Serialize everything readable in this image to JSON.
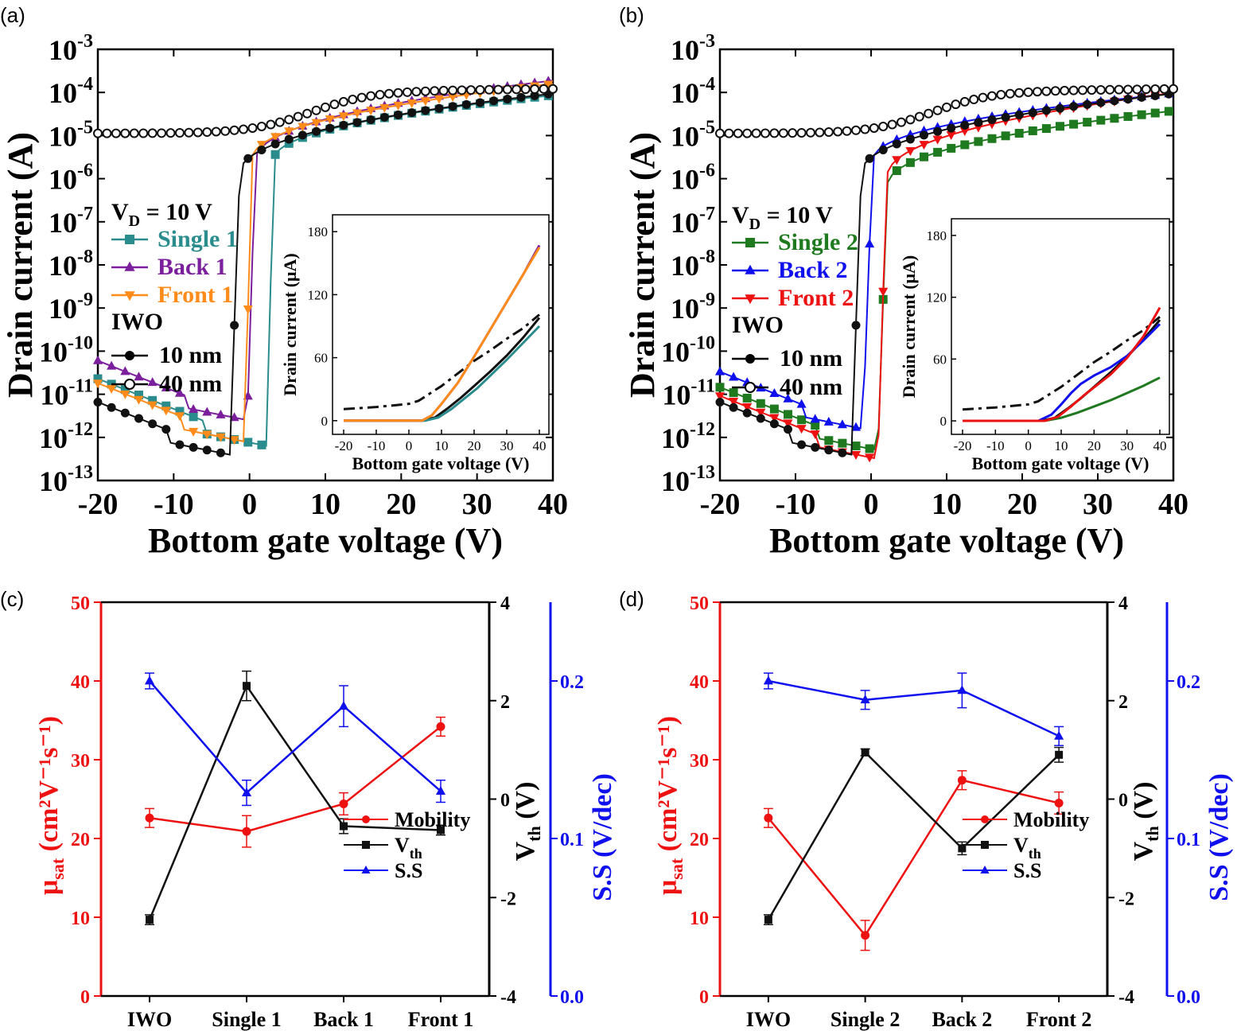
{
  "panels": {
    "a": {
      "label": "(a)"
    },
    "b": {
      "label": "(b)"
    },
    "c": {
      "label": "(c)"
    },
    "d": {
      "label": "(d)"
    }
  },
  "colors": {
    "teal": "#2a8c8c",
    "purple": "#7b1f9c",
    "orange": "#ff8c1a",
    "green": "#1f7a1f",
    "blue": "#1010ee",
    "red": "#ee1111",
    "black": "#111111"
  },
  "chart_data": [
    {
      "id": "a",
      "type": "line",
      "xlabel": "Bottom gate voltage (V)",
      "ylabel": "Drain current (A)",
      "xlim": [
        -20,
        40
      ],
      "ylim_log10": [
        -13,
        -3
      ],
      "xticks": [
        "-20",
        "-10",
        "0",
        "10",
        "20",
        "30",
        "40"
      ],
      "yticks_exp": [
        "-3",
        "-4",
        "-5",
        "-6",
        "-7",
        "-8",
        "-9",
        "-10",
        "-11",
        "-12",
        "-13"
      ],
      "ytick_base": "10",
      "condition": {
        "main": "V",
        "sub": "D",
        "rest": " = 10 V"
      },
      "legend": [
        {
          "name": "Single 1",
          "marker": "square",
          "color": "teal"
        },
        {
          "name": "Back 1",
          "marker": "triangle-up",
          "color": "purple"
        },
        {
          "name": "Front 1",
          "marker": "triangle-down",
          "color": "orange"
        }
      ],
      "legend_group_title": "IWO",
      "legend_iwo": [
        {
          "name": "10 nm",
          "marker": "filled-circle"
        },
        {
          "name": "40 nm",
          "marker": "open-circle"
        }
      ],
      "series": [
        {
          "name": "Single 1",
          "color": "teal",
          "marker": "square",
          "vth": 2.3,
          "off": -12.2,
          "onlog": -5.6,
          "sat": -4.05,
          "ss": 0.13
        },
        {
          "name": "Back 1",
          "color": "purple",
          "marker": "triangle-up",
          "vth": -0.3,
          "off": -11.6,
          "onlog": -5.6,
          "sat": -3.7,
          "ss": 0.18
        },
        {
          "name": "Front 1",
          "color": "orange",
          "marker": "triangle-down",
          "vth": -0.6,
          "off": -12.1,
          "onlog": -5.6,
          "sat": -3.78,
          "ss": 0.13
        },
        {
          "name": "10 nm",
          "color": "black",
          "marker": "filled-circle",
          "vth": -2.6,
          "off": -12.4,
          "onlog": -5.9,
          "sat": -4.0,
          "ss": 0.2
        },
        {
          "name": "40 nm",
          "color": "black",
          "marker": "open-circle",
          "flat": true
        }
      ],
      "inset": {
        "xlabel": "Bottom gate voltage (V)",
        "ylabel": "Drain current (μA)",
        "xlim": [
          -20,
          40
        ],
        "ylim": [
          -10,
          190
        ],
        "xticks": [
          "-20",
          "-10",
          "0",
          "10",
          "20",
          "30",
          "40"
        ],
        "yticks": [
          "0",
          "60",
          "120",
          "180"
        ],
        "series": [
          {
            "name": "40 nm",
            "style": "dashdot",
            "color": "black",
            "x": [
              -20,
              -10,
              0,
              3,
              6,
              10,
              15,
              20,
              25,
              30,
              35,
              40
            ],
            "y": [
              11,
              13,
              16,
              19,
              25,
              33,
              45,
              57,
              67,
              78,
              88,
              101
            ]
          },
          {
            "name": "10 nm",
            "color": "black",
            "x": [
              -20,
              4,
              8,
              12,
              16,
              20,
              25,
              30,
              35,
              40
            ],
            "y": [
              0,
              0,
              3,
              12,
              22,
              33,
              47,
              62,
              79,
              98
            ]
          },
          {
            "name": "Single 1",
            "color": "teal",
            "x": [
              -20,
              5,
              9,
              13,
              17,
              21,
              25,
              30,
              35,
              40
            ],
            "y": [
              0,
              0,
              3,
              11,
              21,
              31,
              43,
              58,
              74,
              90
            ]
          },
          {
            "name": "Back 1",
            "color": "purple",
            "x": [
              -20,
              4,
              7,
              10,
              15,
              20,
              25,
              30,
              35,
              40
            ],
            "y": [
              0,
              0,
              5,
              16,
              36,
              61,
              87,
              113,
              139,
              167
            ]
          },
          {
            "name": "Front 1",
            "color": "orange",
            "x": [
              -20,
              4,
              7,
              10,
              15,
              20,
              25,
              30,
              35,
              40
            ],
            "y": [
              0,
              0,
              5,
              16,
              36,
              61,
              87,
              113,
              139,
              165
            ]
          }
        ]
      }
    },
    {
      "id": "b",
      "type": "line",
      "xlabel": "Bottom gate voltage (V)",
      "ylabel": "Drain current (A)",
      "xlim": [
        -20,
        40
      ],
      "ylim_log10": [
        -13,
        -3
      ],
      "xticks": [
        "-20",
        "-10",
        "0",
        "10",
        "20",
        "30",
        "40"
      ],
      "yticks_exp": [
        "-3",
        "-4",
        "-5",
        "-6",
        "-7",
        "-8",
        "-9",
        "-10",
        "-11",
        "-12",
        "-13"
      ],
      "ytick_base": "10",
      "condition": {
        "main": "V",
        "sub": "D",
        "rest": " = 10 V"
      },
      "legend": [
        {
          "name": "Single 2",
          "marker": "square",
          "color": "green"
        },
        {
          "name": "Back 2",
          "marker": "triangle-up",
          "color": "blue"
        },
        {
          "name": "Front 2",
          "marker": "triangle-down",
          "color": "red"
        }
      ],
      "legend_group_title": "IWO",
      "legend_iwo": [
        {
          "name": "10 nm",
          "marker": "filled-circle"
        },
        {
          "name": "40 nm",
          "marker": "open-circle"
        }
      ],
      "series": [
        {
          "name": "Single 2",
          "color": "green",
          "marker": "square",
          "vth": 0.9,
          "off": -12.3,
          "onlog": -6.2,
          "sat": -4.4,
          "ss": 0.2
        },
        {
          "name": "Back 2",
          "color": "blue",
          "marker": "triangle-up",
          "vth": -1.1,
          "off": -11.8,
          "onlog": -5.6,
          "sat": -4.0,
          "ss": 0.21
        },
        {
          "name": "Front 2",
          "color": "red",
          "marker": "triangle-down",
          "vth": 0.9,
          "off": -12.5,
          "onlog": -6.0,
          "sat": -3.98,
          "ss": 0.18
        },
        {
          "name": "10 nm",
          "color": "black",
          "marker": "filled-circle",
          "vth": -2.6,
          "off": -12.4,
          "onlog": -5.9,
          "sat": -4.0,
          "ss": 0.2
        },
        {
          "name": "40 nm",
          "color": "black",
          "marker": "open-circle",
          "flat": true
        }
      ],
      "inset": {
        "xlabel": "Bottom gate voltage (V)",
        "ylabel": "Drain current (μA)",
        "xlim": [
          -20,
          40
        ],
        "ylim": [
          -10,
          190
        ],
        "xticks": [
          "-20",
          "-10",
          "0",
          "10",
          "20",
          "30",
          "40"
        ],
        "yticks": [
          "0",
          "60",
          "120",
          "180"
        ],
        "series": [
          {
            "name": "40 nm",
            "style": "dashdot",
            "color": "black",
            "x": [
              -20,
              -10,
              0,
              3,
              6,
              10,
              15,
              20,
              25,
              30,
              35,
              40
            ],
            "y": [
              11,
              13,
              16,
              19,
              25,
              33,
              45,
              57,
              67,
              78,
              88,
              101
            ]
          },
          {
            "name": "10 nm",
            "color": "black",
            "x": [
              -20,
              4,
              8,
              12,
              16,
              20,
              25,
              30,
              35,
              40
            ],
            "y": [
              0,
              0,
              3,
              12,
              22,
              33,
              47,
              62,
              79,
              98
            ]
          },
          {
            "name": "Single 2",
            "color": "green",
            "x": [
              -20,
              5,
              10,
              15,
              20,
              25,
              30,
              35,
              40
            ],
            "y": [
              0,
              0,
              3,
              8,
              14,
              20,
              27,
              34,
              42
            ]
          },
          {
            "name": "Back 2",
            "color": "blue",
            "x": [
              -20,
              3,
              7,
              10,
              13,
              16,
              20,
              25,
              30,
              35,
              40
            ],
            "y": [
              0,
              0,
              6,
              16,
              27,
              36,
              44,
              52,
              63,
              78,
              94
            ]
          },
          {
            "name": "Front 2",
            "color": "red",
            "x": [
              -20,
              5,
              9,
              13,
              17,
              21,
              25,
              30,
              35,
              40
            ],
            "y": [
              0,
              0,
              4,
              14,
              25,
              35,
              45,
              61,
              82,
              110
            ]
          }
        ]
      }
    },
    {
      "id": "c",
      "type": "line",
      "categories": [
        "IWO",
        "Single 1",
        "Back 1",
        "Front 1"
      ],
      "y_left": {
        "label_main": "μ",
        "label_sub": "sat",
        "label_rest": " (cm²V⁻¹s⁻¹)",
        "lim": [
          0,
          50
        ],
        "ticks": [
          "0",
          "10",
          "20",
          "30",
          "40",
          "50"
        ]
      },
      "y_mid": {
        "label_main": "V",
        "label_sub": "th",
        "label_rest": " (V)",
        "lim": [
          -4,
          4
        ],
        "ticks": [
          "-4",
          "-2",
          "0",
          "2",
          "4"
        ]
      },
      "y_right": {
        "label": "S.S (V/dec)",
        "lim": [
          0,
          0.25
        ],
        "ticks": [
          "0.0",
          "0.1",
          "0.2"
        ]
      },
      "series": [
        {
          "name": "Mobility",
          "axis": "left",
          "color": "red",
          "marker": "circle",
          "values": [
            22.6,
            20.9,
            24.4,
            34.2
          ],
          "err": [
            1.2,
            2.0,
            1.4,
            1.2
          ]
        },
        {
          "name": "V",
          "name_sub": "th",
          "axis": "mid",
          "color": "black",
          "marker": "square",
          "values": [
            -2.45,
            2.3,
            -0.55,
            -0.63
          ],
          "err": [
            0.1,
            0.3,
            0.15,
            0.1
          ]
        },
        {
          "name": "S.S",
          "axis": "right",
          "color": "blue",
          "marker": "triangle-up",
          "values": [
            0.2,
            0.129,
            0.184,
            0.13
          ],
          "err": [
            0.005,
            0.008,
            0.013,
            0.007
          ]
        }
      ],
      "legend_position": "bottom-right"
    },
    {
      "id": "d",
      "type": "line",
      "categories": [
        "IWO",
        "Single 2",
        "Back 2",
        "Front 2"
      ],
      "y_left": {
        "label_main": "μ",
        "label_sub": "sat",
        "label_rest": " (cm²V⁻¹s⁻¹)",
        "lim": [
          0,
          50
        ],
        "ticks": [
          "0",
          "10",
          "20",
          "30",
          "40",
          "50"
        ]
      },
      "y_mid": {
        "label_main": "V",
        "label_sub": "th",
        "label_rest": " (V)",
        "lim": [
          -4,
          4
        ],
        "ticks": [
          "-4",
          "-2",
          "0",
          "2",
          "4"
        ]
      },
      "y_right": {
        "label": "S.S (V/dec)",
        "lim": [
          0,
          0.25
        ],
        "ticks": [
          "0.0",
          "0.1",
          "0.2"
        ]
      },
      "series": [
        {
          "name": "Mobility",
          "axis": "left",
          "color": "red",
          "marker": "circle",
          "values": [
            22.6,
            7.7,
            27.4,
            24.5
          ],
          "err": [
            1.2,
            1.9,
            1.2,
            1.4
          ]
        },
        {
          "name": "V",
          "name_sub": "th",
          "axis": "mid",
          "color": "black",
          "marker": "square",
          "values": [
            -2.45,
            0.95,
            -1.0,
            0.9
          ],
          "err": [
            0.1,
            0.07,
            0.13,
            0.15
          ]
        },
        {
          "name": "S.S",
          "axis": "right",
          "color": "blue",
          "marker": "triangle-up",
          "values": [
            0.2,
            0.188,
            0.194,
            0.165
          ],
          "err": [
            0.005,
            0.006,
            0.011,
            0.006
          ]
        }
      ],
      "legend_position": "bottom-right"
    }
  ]
}
